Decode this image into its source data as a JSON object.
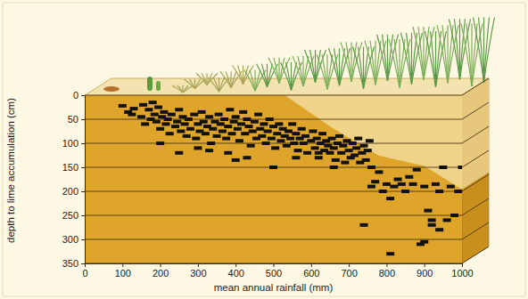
{
  "chart_data": {
    "type": "scatter",
    "xlabel": "mean annual rainfall (mm)",
    "ylabel": "depth to lime accumulation (cm)",
    "xlim": [
      0,
      1000
    ],
    "ylim": [
      0,
      350
    ],
    "xticks": [
      0,
      100,
      200,
      300,
      400,
      500,
      600,
      700,
      800,
      900,
      1000
    ],
    "yticks": [
      0,
      50,
      100,
      150,
      200,
      250,
      300,
      350
    ],
    "grid": true,
    "x": [
      100,
      115,
      125,
      130,
      150,
      155,
      160,
      170,
      175,
      180,
      185,
      190,
      195,
      200,
      205,
      210,
      215,
      220,
      225,
      230,
      240,
      245,
      250,
      255,
      260,
      265,
      270,
      275,
      280,
      290,
      295,
      300,
      305,
      310,
      315,
      320,
      325,
      330,
      335,
      340,
      345,
      350,
      355,
      360,
      365,
      370,
      375,
      380,
      385,
      390,
      395,
      400,
      405,
      410,
      415,
      420,
      425,
      430,
      435,
      440,
      445,
      450,
      455,
      460,
      465,
      470,
      475,
      480,
      485,
      490,
      495,
      500,
      505,
      510,
      515,
      520,
      525,
      530,
      535,
      540,
      545,
      550,
      555,
      560,
      565,
      570,
      575,
      580,
      585,
      590,
      600,
      605,
      610,
      615,
      620,
      625,
      630,
      635,
      640,
      645,
      650,
      655,
      660,
      665,
      670,
      675,
      680,
      685,
      690,
      695,
      700,
      705,
      710,
      715,
      720,
      725,
      730,
      735,
      740,
      745,
      750,
      755,
      760,
      770,
      780,
      790,
      800,
      810,
      820,
      830,
      840,
      850,
      860,
      870,
      880,
      900,
      910,
      920,
      930,
      940,
      950,
      960,
      970,
      980,
      990,
      1000,
      200,
      250,
      300,
      330,
      380,
      400,
      430,
      500,
      560,
      620,
      660,
      740,
      760,
      810,
      900,
      920,
      940,
      890
    ],
    "series": [
      {
        "color": "#111111",
        "marker": "dash",
        "values": [
          22,
          35,
          40,
          28,
          45,
          20,
          60,
          30,
          50,
          15,
          40,
          55,
          25,
          70,
          45,
          35,
          60,
          50,
          80,
          40,
          65,
          55,
          30,
          75,
          45,
          60,
          85,
          50,
          70,
          40,
          90,
          60,
          75,
          35,
          55,
          80,
          65,
          45,
          100,
          70,
          55,
          85,
          40,
          60,
          75,
          50,
          90,
          65,
          30,
          80,
          55,
          45,
          70,
          95,
          60,
          35,
          80,
          50,
          65,
          105,
          75,
          55,
          90,
          40,
          70,
          85,
          60,
          100,
          75,
          50,
          90,
          65,
          110,
          80,
          60,
          95,
          70,
          85,
          105,
          75,
          90,
          60,
          100,
          80,
          115,
          90,
          70,
          100,
          85,
          120,
          95,
          75,
          110,
          90,
          130,
          100,
          80,
          115,
          95,
          105,
          120,
          90,
          110,
          135,
          100,
          85,
          120,
          105,
          140,
          95,
          115,
          130,
          100,
          125,
          110,
          90,
          140,
          120,
          105,
          135,
          115,
          95,
          150,
          180,
          160,
          200,
          185,
          215,
          190,
          175,
          185,
          200,
          170,
          185,
          155,
          190,
          240,
          260,
          185,
          200,
          150,
          260,
          190,
          250,
          200,
          150,
          100,
          120,
          110,
          115,
          120,
          135,
          130,
          150,
          130,
          120,
          150,
          270,
          190,
          330,
          305,
          270,
          280,
          310
        ]
      }
    ]
  }
}
